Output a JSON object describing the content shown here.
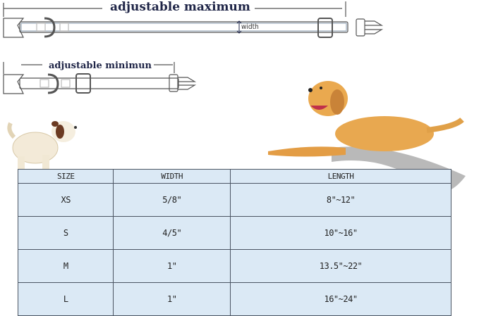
{
  "diagram": {
    "max_label": "adjustable maximum",
    "min_label": "adjustable minimun",
    "width_label": "width"
  },
  "table": {
    "headers": [
      "SIZE",
      "WIDTH",
      "LENGTH"
    ],
    "rows": [
      [
        "XS",
        "5/8\"",
        "8\"~12\""
      ],
      [
        "S",
        "4/5\"",
        "10\"~16\""
      ],
      [
        "M",
        "1\"",
        "13.5\"~22\""
      ],
      [
        "L",
        "1\"",
        "16\"~24\""
      ]
    ]
  },
  "colors": {
    "table_bg": "#dbe9f5",
    "title": "#1f2547",
    "dog": "#e8a850"
  }
}
